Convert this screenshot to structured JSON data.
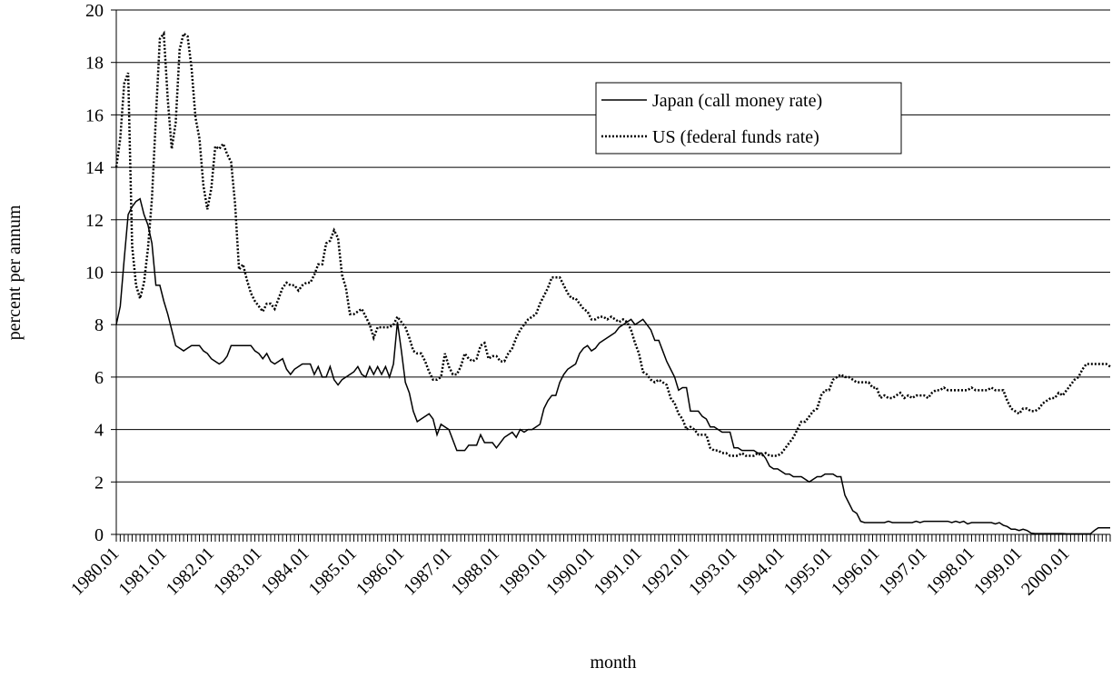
{
  "chart_data": {
    "type": "line",
    "x_label": "month",
    "y_label": "percent per annum",
    "categories": [
      "1980.01",
      null,
      null,
      null,
      null,
      null,
      null,
      null,
      null,
      null,
      null,
      null,
      "1981.01",
      null,
      null,
      null,
      null,
      null,
      null,
      null,
      null,
      null,
      null,
      null,
      "1982.01",
      null,
      null,
      null,
      null,
      null,
      null,
      null,
      null,
      null,
      null,
      null,
      "1983.01",
      null,
      null,
      null,
      null,
      null,
      null,
      null,
      null,
      null,
      null,
      null,
      "1984.01",
      null,
      null,
      null,
      null,
      null,
      null,
      null,
      null,
      null,
      null,
      null,
      "1985.01",
      null,
      null,
      null,
      null,
      null,
      null,
      null,
      null,
      null,
      null,
      null,
      "1986.01",
      null,
      null,
      null,
      null,
      null,
      null,
      null,
      null,
      null,
      null,
      null,
      "1987.01",
      null,
      null,
      null,
      null,
      null,
      null,
      null,
      null,
      null,
      null,
      null,
      "1988.01",
      null,
      null,
      null,
      null,
      null,
      null,
      null,
      null,
      null,
      null,
      null,
      "1989.01",
      null,
      null,
      null,
      null,
      null,
      null,
      null,
      null,
      null,
      null,
      null,
      "1990.01",
      null,
      null,
      null,
      null,
      null,
      null,
      null,
      null,
      null,
      null,
      null,
      "1991.01",
      null,
      null,
      null,
      null,
      null,
      null,
      null,
      null,
      null,
      null,
      null,
      "1992.01",
      null,
      null,
      null,
      null,
      null,
      null,
      null,
      null,
      null,
      null,
      null,
      "1993.01",
      null,
      null,
      null,
      null,
      null,
      null,
      null,
      null,
      null,
      null,
      null,
      "1994.01",
      null,
      null,
      null,
      null,
      null,
      null,
      null,
      null,
      null,
      null,
      null,
      "1995.01",
      null,
      null,
      null,
      null,
      null,
      null,
      null,
      null,
      null,
      null,
      null,
      "1996.01",
      null,
      null,
      null,
      null,
      null,
      null,
      null,
      null,
      null,
      null,
      null,
      "1997.01",
      null,
      null,
      null,
      null,
      null,
      null,
      null,
      null,
      null,
      null,
      null,
      "1998.01",
      null,
      null,
      null,
      null,
      null,
      null,
      null,
      null,
      null,
      null,
      null,
      "1999.01",
      null,
      null,
      null,
      null,
      null,
      null,
      null,
      null,
      null,
      null,
      null,
      "2000.01",
      null,
      null,
      null,
      null,
      null,
      null,
      null,
      null,
      null,
      null,
      null
    ],
    "series": [
      {
        "name": "Japan (call money rate)",
        "color": "#000000",
        "linestyle": "solid",
        "values": [
          8,
          8.7,
          10.5,
          12.2,
          12.5,
          12.7,
          12.8,
          12.2,
          11.8,
          11.1,
          9.5,
          9.5,
          8.9,
          8.4,
          7.8,
          7.2,
          7.1,
          7.0,
          7.1,
          7.2,
          7.2,
          7.2,
          7.0,
          6.9,
          6.7,
          6.6,
          6.5,
          6.6,
          6.8,
          7.2,
          7.2,
          7.2,
          7.2,
          7.2,
          7.2,
          7.0,
          6.9,
          6.7,
          6.9,
          6.6,
          6.5,
          6.6,
          6.7,
          6.3,
          6.1,
          6.3,
          6.4,
          6.5,
          6.5,
          6.5,
          6.1,
          6.4,
          6.0,
          6.0,
          6.4,
          5.9,
          5.7,
          5.9,
          6.0,
          6.1,
          6.2,
          6.4,
          6.1,
          6.0,
          6.4,
          6.1,
          6.4,
          6.1,
          6.4,
          6.0,
          6.5,
          8.1,
          7.0,
          5.8,
          5.4,
          4.7,
          4.3,
          4.4,
          4.5,
          4.6,
          4.4,
          3.8,
          4.2,
          4.1,
          4.0,
          3.6,
          3.2,
          3.2,
          3.2,
          3.4,
          3.4,
          3.4,
          3.8,
          3.5,
          3.5,
          3.5,
          3.3,
          3.5,
          3.7,
          3.8,
          3.9,
          3.7,
          4.0,
          3.9,
          4.0,
          4.0,
          4.1,
          4.2,
          4.8,
          5.1,
          5.3,
          5.3,
          5.8,
          6.1,
          6.3,
          6.4,
          6.5,
          6.9,
          7.1,
          7.2,
          7.0,
          7.1,
          7.3,
          7.4,
          7.5,
          7.6,
          7.7,
          7.9,
          8.0,
          8.1,
          8.2,
          8.0,
          8.1,
          8.2,
          8.0,
          7.8,
          7.4,
          7.4,
          7.0,
          6.6,
          6.3,
          6.0,
          5.5,
          5.6,
          5.6,
          4.7,
          4.7,
          4.7,
          4.5,
          4.4,
          4.1,
          4.1,
          4.0,
          3.9,
          3.9,
          3.9,
          3.3,
          3.3,
          3.2,
          3.2,
          3.2,
          3.2,
          3.1,
          3.1,
          2.9,
          2.6,
          2.5,
          2.5,
          2.4,
          2.3,
          2.3,
          2.2,
          2.2,
          2.2,
          2.1,
          2.0,
          2.1,
          2.2,
          2.2,
          2.3,
          2.3,
          2.3,
          2.2,
          2.2,
          1.5,
          1.2,
          0.9,
          0.8,
          0.5,
          0.45,
          0.45,
          0.45,
          0.45,
          0.45,
          0.45,
          0.5,
          0.45,
          0.45,
          0.45,
          0.45,
          0.45,
          0.45,
          0.5,
          0.45,
          0.5,
          0.5,
          0.5,
          0.5,
          0.5,
          0.5,
          0.5,
          0.45,
          0.5,
          0.45,
          0.5,
          0.4,
          0.45,
          0.45,
          0.45,
          0.45,
          0.45,
          0.45,
          0.4,
          0.45,
          0.35,
          0.3,
          0.2,
          0.2,
          0.15,
          0.2,
          0.15,
          0.05,
          0.03,
          0.03,
          0.03,
          0.03,
          0.03,
          0.03,
          0.03,
          0.03,
          0.02,
          0.02,
          0.02,
          0.02,
          0.02,
          0.02,
          0.02,
          0.15,
          0.25,
          0.25,
          0.25,
          0.25
        ]
      },
      {
        "name": "US (federal funds rate)",
        "color": "#000000",
        "linestyle": "dotted",
        "values": [
          14,
          15.1,
          17.2,
          17.6,
          11,
          9.5,
          9.0,
          9.6,
          10.9,
          12.8,
          15.9,
          18.9,
          19.1,
          16.6,
          14.7,
          15.7,
          18.5,
          19.1,
          19.0,
          17.8,
          15.9,
          15.1,
          13.3,
          12.4,
          13.2,
          14.8,
          14.7,
          14.9,
          14.5,
          14.2,
          12.6,
          10.1,
          10.3,
          9.7,
          9.2,
          8.9,
          8.7,
          8.5,
          8.8,
          8.8,
          8.6,
          9.0,
          9.4,
          9.6,
          9.5,
          9.5,
          9.3,
          9.5,
          9.6,
          9.6,
          9.9,
          10.3,
          10.3,
          11.1,
          11.2,
          11.6,
          11.3,
          9.9,
          9.4,
          8.4,
          8.4,
          8.5,
          8.6,
          8.3,
          8.0,
          7.5,
          7.9,
          7.9,
          7.9,
          7.9,
          8.0,
          8.3,
          8.1,
          7.9,
          7.5,
          7.0,
          6.9,
          6.9,
          6.6,
          6.2,
          5.9,
          5.9,
          6.0,
          6.9,
          6.4,
          6.1,
          6.1,
          6.4,
          6.9,
          6.7,
          6.6,
          6.7,
          7.2,
          7.3,
          6.7,
          6.8,
          6.8,
          6.6,
          6.6,
          6.9,
          7.1,
          7.5,
          7.8,
          8.0,
          8.2,
          8.3,
          8.4,
          8.8,
          9.1,
          9.4,
          9.8,
          9.8,
          9.8,
          9.5,
          9.2,
          9.0,
          9.0,
          8.8,
          8.6,
          8.5,
          8.2,
          8.2,
          8.3,
          8.3,
          8.2,
          8.3,
          8.2,
          8.1,
          8.2,
          8.1,
          7.8,
          7.3,
          6.9,
          6.2,
          6.1,
          5.9,
          5.8,
          5.9,
          5.8,
          5.7,
          5.2,
          5.0,
          4.6,
          4.4,
          4.0,
          4.1,
          4.0,
          3.8,
          3.8,
          3.8,
          3.3,
          3.2,
          3.2,
          3.1,
          3.1,
          3.0,
          3.0,
          3.0,
          3.1,
          3.0,
          3.0,
          3.0,
          3.1,
          3.0,
          3.1,
          3.0,
          3.0,
          3.0,
          3.1,
          3.3,
          3.5,
          3.7,
          4.0,
          4.3,
          4.3,
          4.5,
          4.7,
          4.8,
          5.3,
          5.5,
          5.5,
          5.9,
          6.0,
          6.1,
          6.0,
          6.0,
          5.9,
          5.8,
          5.8,
          5.8,
          5.8,
          5.6,
          5.6,
          5.2,
          5.3,
          5.2,
          5.2,
          5.3,
          5.4,
          5.2,
          5.3,
          5.2,
          5.3,
          5.3,
          5.3,
          5.2,
          5.4,
          5.5,
          5.5,
          5.6,
          5.5,
          5.5,
          5.5,
          5.5,
          5.5,
          5.5,
          5.6,
          5.5,
          5.5,
          5.5,
          5.5,
          5.6,
          5.5,
          5.5,
          5.5,
          5.1,
          4.8,
          4.7,
          4.6,
          4.8,
          4.8,
          4.7,
          4.7,
          4.8,
          5.0,
          5.1,
          5.2,
          5.2,
          5.4,
          5.3,
          5.5,
          5.7,
          5.9,
          6.0,
          6.3,
          6.5,
          6.5,
          6.5,
          6.5,
          6.5,
          6.5,
          6.4
        ]
      }
    ],
    "ylim": [
      0,
      20
    ],
    "yticks": [
      0,
      2,
      4,
      6,
      8,
      10,
      12,
      14,
      16,
      18,
      20
    ],
    "grid": true,
    "legend": "upper right"
  }
}
